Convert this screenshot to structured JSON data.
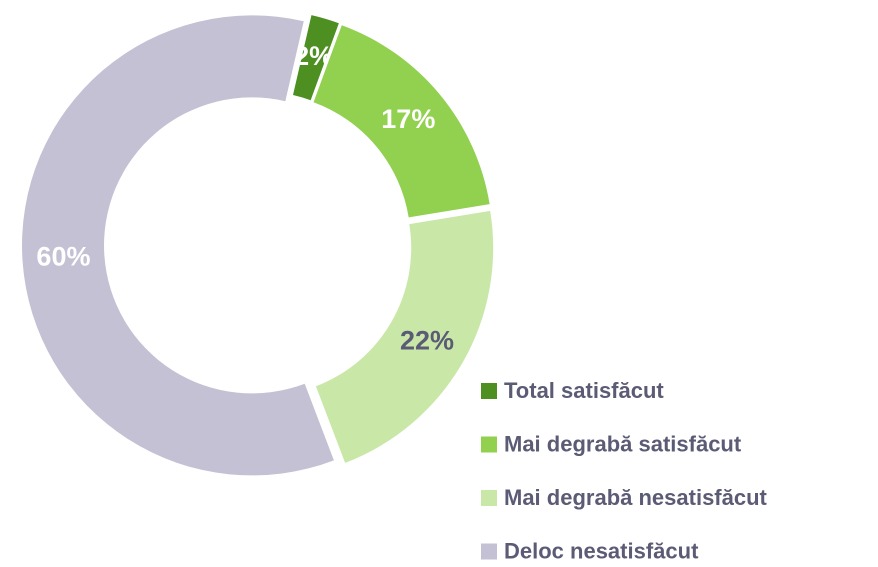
{
  "chart_data": {
    "type": "donut",
    "categories": [
      "Total satisfăcut",
      "Mai degrabă satisfăcut",
      "Mai degrabă nesatisfăcut",
      "Deloc nesatisfăcut"
    ],
    "values": [
      2,
      17,
      22,
      60
    ],
    "value_labels": [
      "2%",
      "17%",
      "22%",
      "60%"
    ],
    "colors": [
      "#4e8f22",
      "#92d050",
      "#c9e8a8",
      "#c3c1d3"
    ],
    "label_colors": [
      "#ffffff",
      "#ffffff",
      "#5b5b75",
      "#ffffff"
    ],
    "legend": "bottom-right"
  }
}
